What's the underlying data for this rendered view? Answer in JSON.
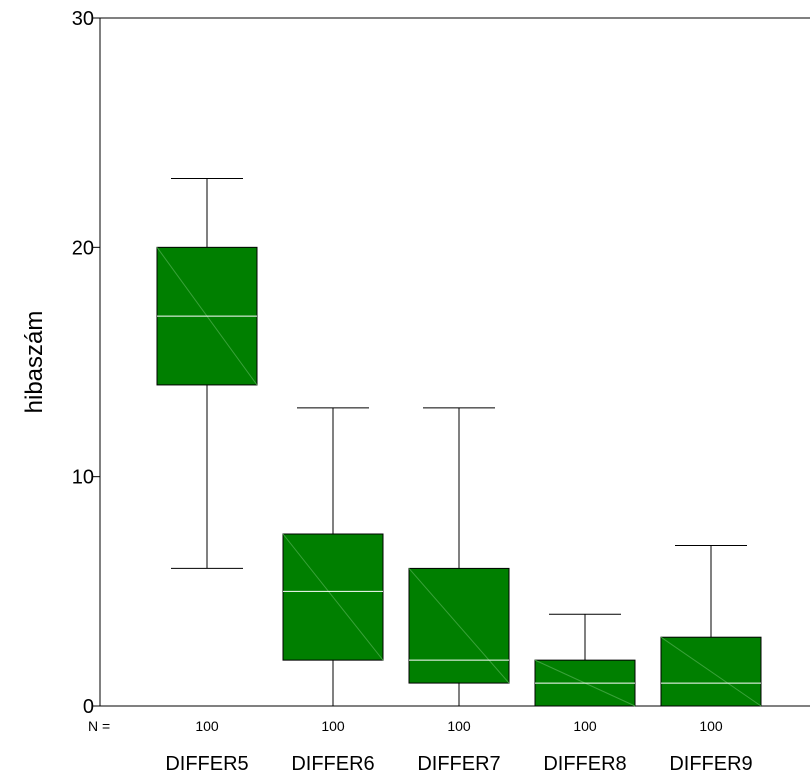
{
  "chart_data": {
    "type": "boxplot",
    "title": "",
    "xlabel": "",
    "ylabel": "hibaszám",
    "ylim": [
      0,
      30
    ],
    "yticks": [
      0,
      10,
      20,
      30
    ],
    "n_prefix": "N =",
    "box_color": "#007f00",
    "median_color": "#ffffff",
    "categories": [
      "DIFFER5",
      "DIFFER6",
      "DIFFER7",
      "DIFFER8",
      "DIFFER9"
    ],
    "n": [
      "100",
      "100",
      "100",
      "100",
      "100"
    ],
    "boxes": [
      {
        "min": 6,
        "q1": 14,
        "median": 17,
        "q3": 20,
        "max": 23
      },
      {
        "min": 0,
        "q1": 2,
        "median": 5,
        "q3": 7.5,
        "max": 13
      },
      {
        "min": 0,
        "q1": 1,
        "median": 2,
        "q3": 6,
        "max": 13
      },
      {
        "min": 0,
        "q1": 0,
        "median": 1,
        "q3": 2,
        "max": 4
      },
      {
        "min": 0,
        "q1": 0,
        "median": 1,
        "q3": 3,
        "max": 7
      }
    ]
  }
}
